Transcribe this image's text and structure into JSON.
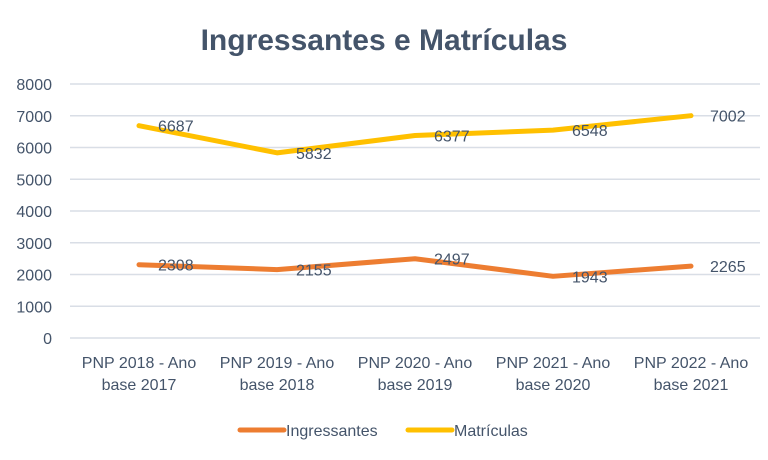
{
  "chart_data": {
    "type": "line",
    "title": "Ingressantes e Matrículas",
    "xlabel": "",
    "ylabel": "",
    "categories": [
      [
        "PNP 2018 - Ano",
        "base 2017"
      ],
      [
        "PNP 2019 - Ano",
        "base 2018"
      ],
      [
        "PNP 2020 - Ano",
        "base 2019"
      ],
      [
        "PNP 2021 - Ano",
        "base 2020"
      ],
      [
        "PNP 2022 - Ano",
        "base 2021"
      ]
    ],
    "series": [
      {
        "name": "Ingressantes",
        "color": "#ed7d31",
        "values": [
          2308,
          2155,
          2497,
          1943,
          2265
        ]
      },
      {
        "name": "Matrículas",
        "color": "#ffc000",
        "values": [
          6687,
          5832,
          6377,
          6548,
          7002
        ]
      }
    ],
    "ylim": [
      0,
      8000
    ],
    "yticks": [
      0,
      1000,
      2000,
      3000,
      4000,
      5000,
      6000,
      7000,
      8000
    ],
    "grid": true,
    "legend": "bottom",
    "data_labels": true
  }
}
